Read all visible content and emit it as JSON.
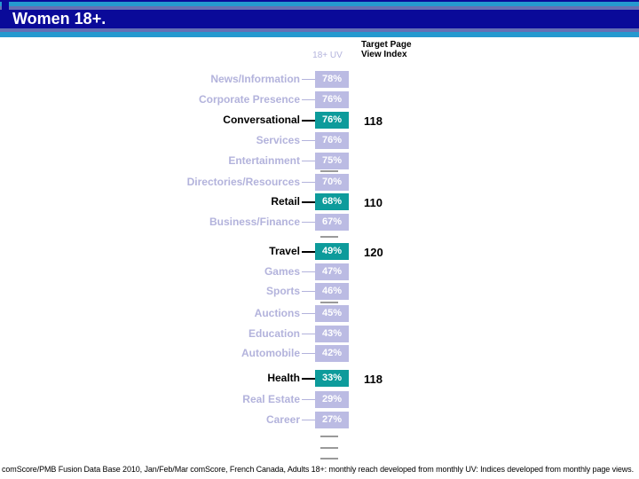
{
  "header": {
    "title": "Women 18+."
  },
  "chart_header": {
    "uv_column_label": "18+ UV",
    "index_column_label_line1": "Target Page",
    "index_column_label_line2": "View Index"
  },
  "chart_data": {
    "type": "bar",
    "orientation": "horizontal",
    "title": "Women 18+.",
    "value_axis_label": "18+ UV",
    "secondary_column_label": "Target Page View Index",
    "value_format": "percent",
    "categories": [
      "News/Information",
      "Corporate Presence",
      "Conversational",
      "Services",
      "Entertainment",
      "Directories/Resources",
      "Retail",
      "Business/Finance",
      "Travel",
      "Games",
      "Sports",
      "Auctions",
      "Education",
      "Automobile",
      "Health",
      "Real Estate",
      "Career"
    ],
    "values": [
      78,
      76,
      76,
      76,
      75,
      70,
      68,
      67,
      49,
      47,
      46,
      45,
      43,
      42,
      33,
      29,
      27
    ],
    "highlighted_categories": [
      "Conversational",
      "Retail",
      "Travel",
      "Health"
    ],
    "target_page_view_index": {
      "Conversational": 118,
      "Retail": 110,
      "Travel": 120,
      "Health": 118
    },
    "unlabeled_dash_marks": 6,
    "legend_position": "none",
    "grid": false
  },
  "footer": {
    "text": "comScore/PMB Fusion Data Base 2010, Jan/Feb/Mar comScore, French Canada, Adults 18+: monthly reach developed from monthly UV: Indices developed from monthly page views."
  },
  "colors": {
    "highlight_teal": "#0d9b9b",
    "bar_lavender": "#bbbbe3",
    "muted_text_lavender": "#b3b3dc",
    "header_navy": "#0a0a99",
    "header_purple": "#6670b4",
    "header_cyan": "#2599cf",
    "dash_gray": "#9a9a9a"
  }
}
